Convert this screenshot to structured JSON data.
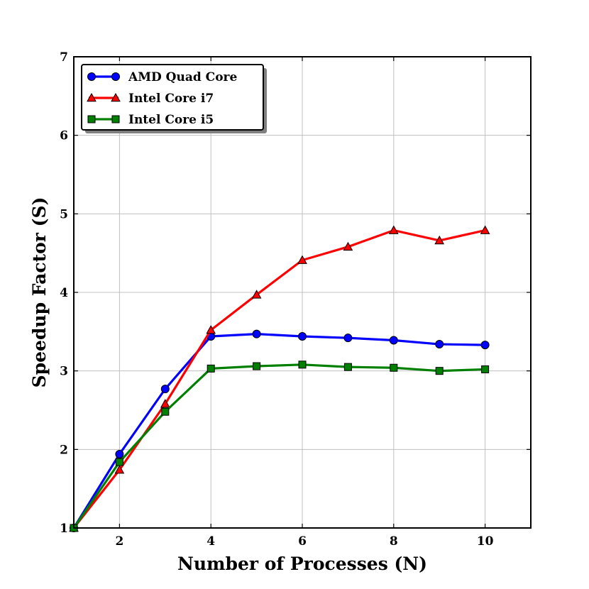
{
  "chart_data": {
    "type": "line",
    "title": "",
    "xlabel": "Number of Processes (N)",
    "ylabel": "Speedup Factor (S)",
    "xlim": [
      1,
      11
    ],
    "ylim": [
      1,
      7
    ],
    "xticks": [
      2,
      4,
      6,
      8,
      10
    ],
    "yticks": [
      1,
      2,
      3,
      4,
      5,
      6,
      7
    ],
    "grid": true,
    "legend_position": "top-left",
    "x": [
      1,
      2,
      3,
      4,
      5,
      6,
      7,
      8,
      9,
      10
    ],
    "series": [
      {
        "name": "AMD Quad Core",
        "color": "#0000ff",
        "marker": "circle",
        "values": [
          1.0,
          1.94,
          2.77,
          3.44,
          3.47,
          3.44,
          3.42,
          3.39,
          3.34,
          3.33
        ]
      },
      {
        "name": "Intel Core i7",
        "color": "#ff0000",
        "marker": "triangle",
        "values": [
          1.0,
          1.74,
          2.58,
          3.52,
          3.97,
          4.41,
          4.58,
          4.79,
          4.66,
          4.79
        ]
      },
      {
        "name": "Intel Core i5",
        "color": "#008000",
        "marker": "square",
        "values": [
          1.0,
          1.84,
          2.48,
          3.03,
          3.06,
          3.08,
          3.05,
          3.04,
          3.0,
          3.02
        ]
      }
    ]
  }
}
